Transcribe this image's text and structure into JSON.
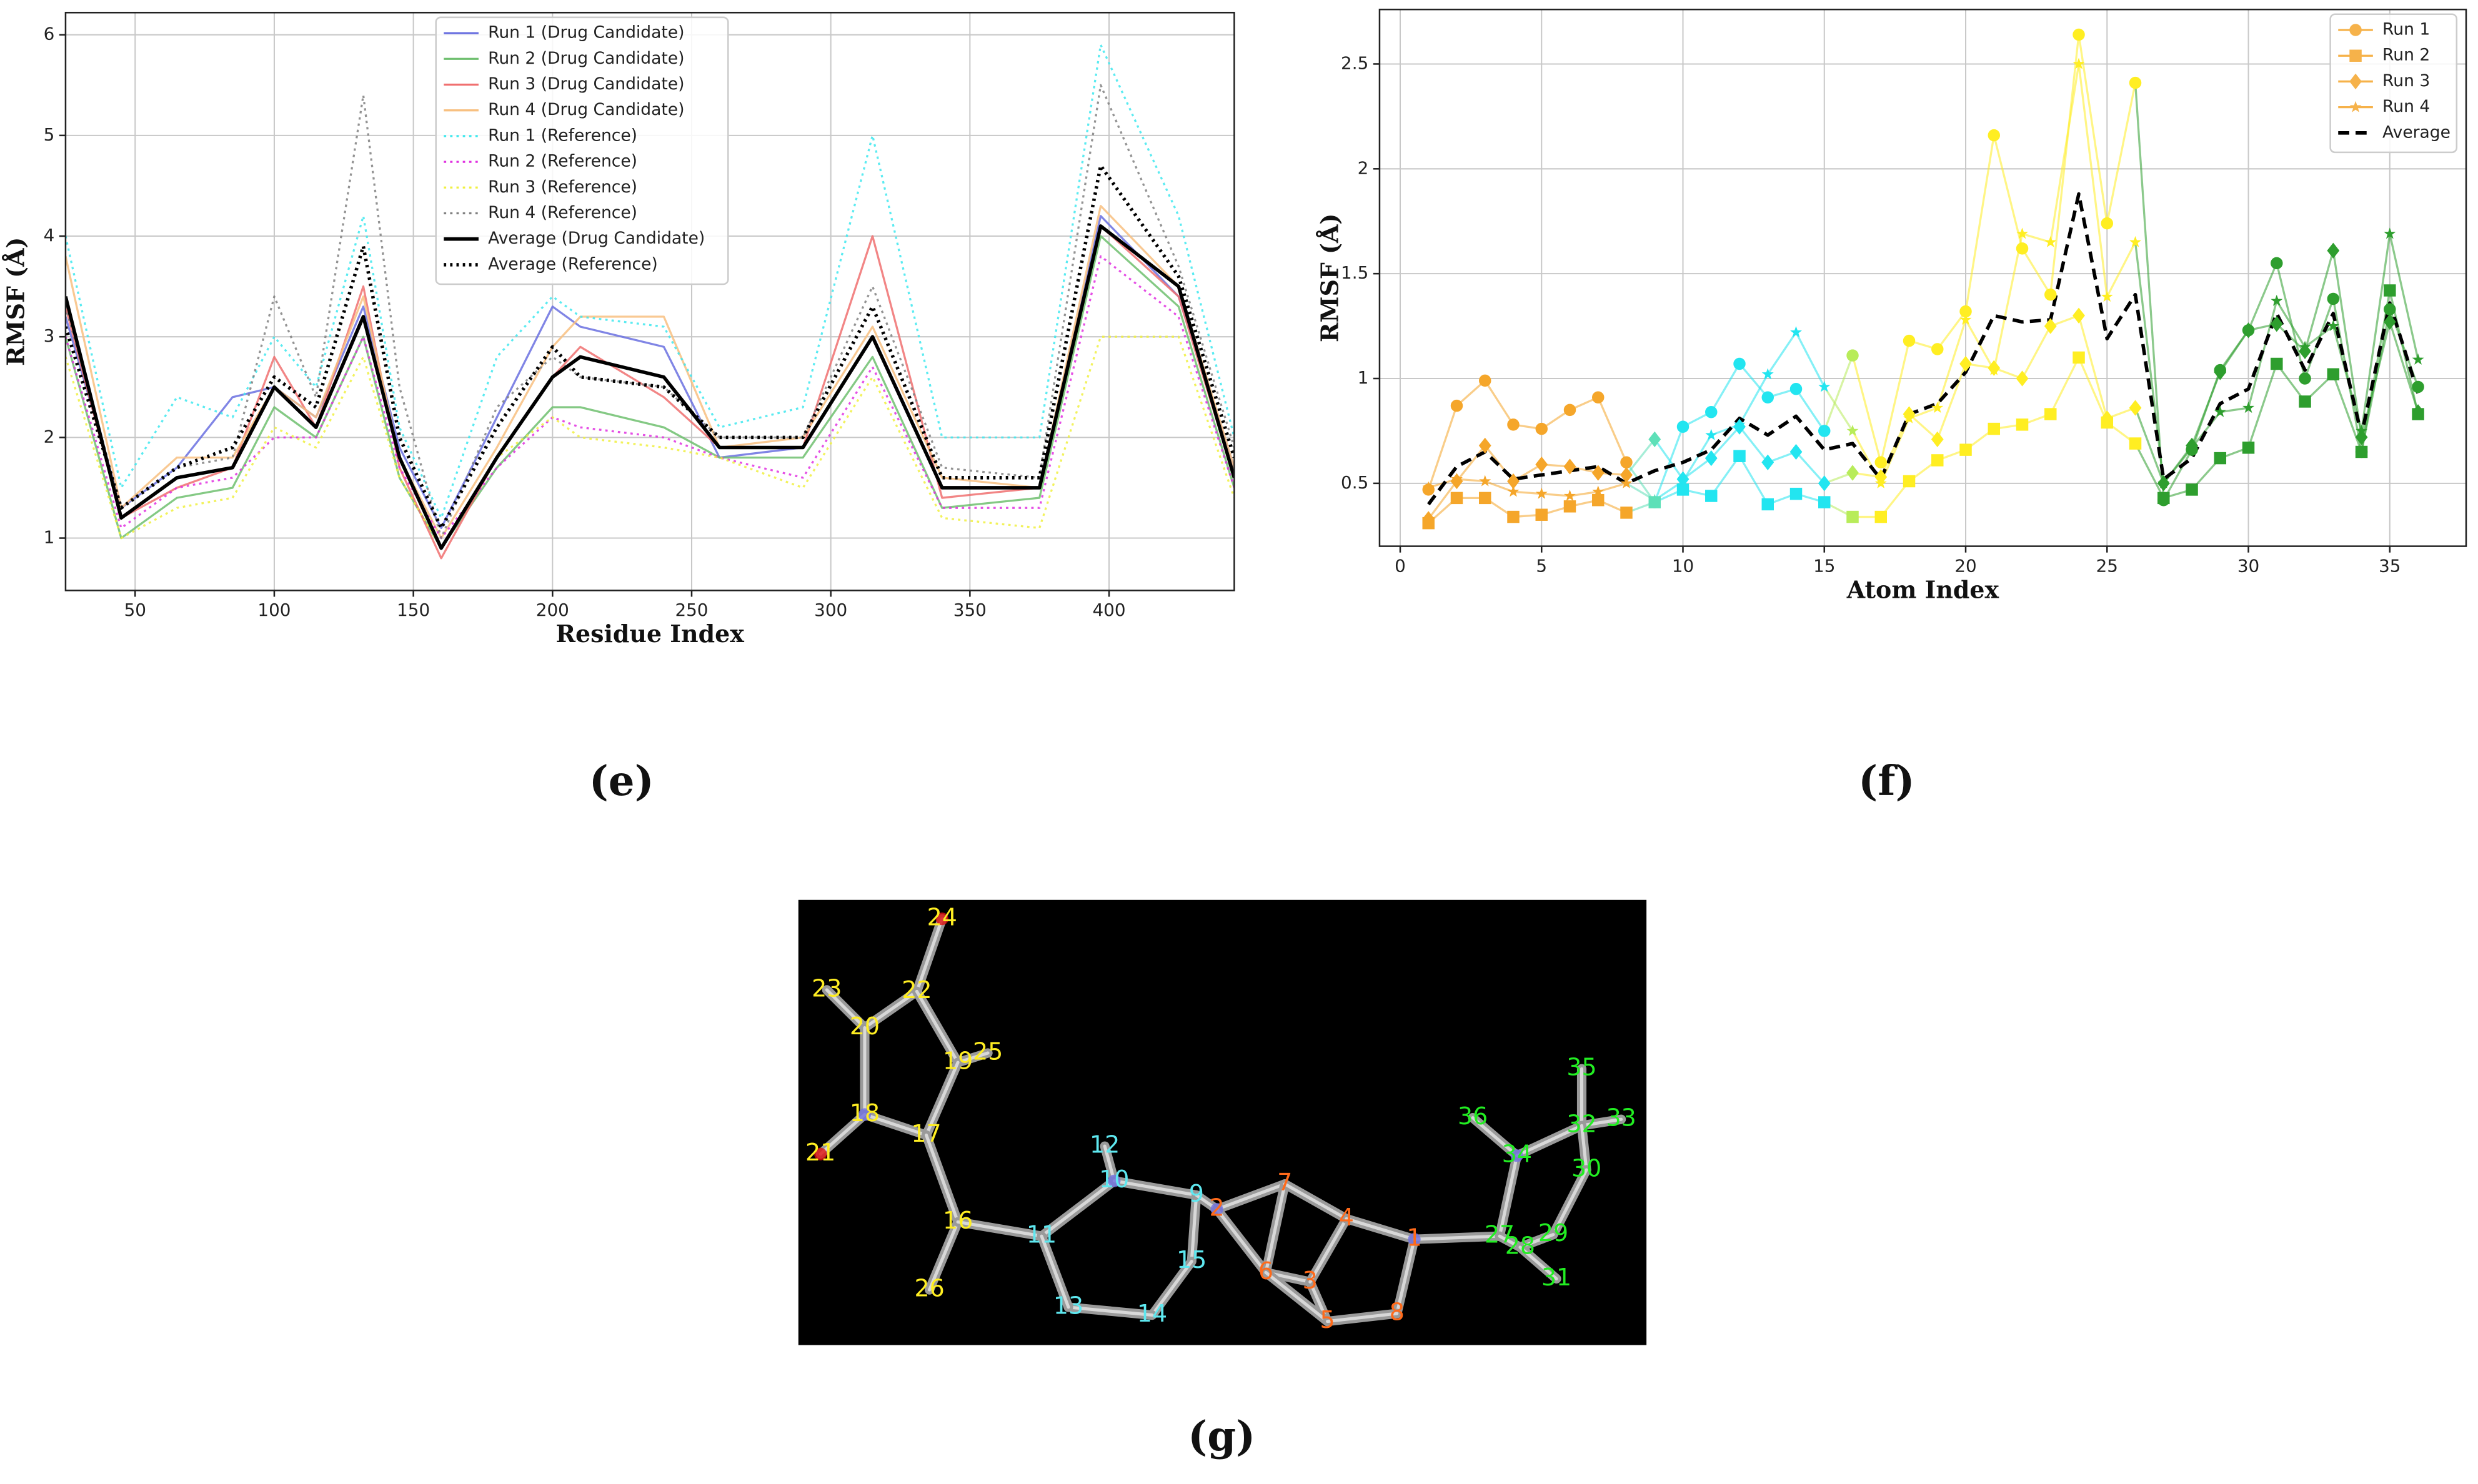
{
  "chart_data": [
    {
      "type": "line",
      "xlabel": "Residue Index",
      "ylabel": "RMSF (Å)",
      "x": [
        25,
        45,
        65,
        85,
        100,
        115,
        132,
        145,
        160,
        180,
        200,
        210,
        240,
        260,
        290,
        315,
        340,
        375,
        397,
        425,
        445
      ],
      "xlim": [
        25,
        445
      ],
      "ylim": [
        0.48,
        6.22
      ],
      "xticks": [
        50,
        100,
        150,
        200,
        250,
        300,
        350,
        400
      ],
      "yticks": [
        1,
        2,
        3,
        4,
        5,
        6
      ],
      "grid": true,
      "legend": "upper center",
      "series": [
        {
          "name": "Run 1 (Drug Candidate)",
          "color": "#6a70e0",
          "dash": "solid",
          "values": [
            3.2,
            1.3,
            1.7,
            2.4,
            2.5,
            2.2,
            3.3,
            1.9,
            1.1,
            2.2,
            3.3,
            3.1,
            2.9,
            1.8,
            1.9,
            3.0,
            1.5,
            1.5,
            4.2,
            3.4,
            1.7
          ]
        },
        {
          "name": "Run 2 (Drug Candidate)",
          "color": "#6fbf6f",
          "dash": "solid",
          "values": [
            3.0,
            1.0,
            1.4,
            1.5,
            2.3,
            2.0,
            3.0,
            1.6,
            0.9,
            1.7,
            2.3,
            2.3,
            2.1,
            1.8,
            1.8,
            2.8,
            1.3,
            1.4,
            4.0,
            3.3,
            1.5
          ]
        },
        {
          "name": "Run 3 (Drug Candidate)",
          "color": "#f07070",
          "dash": "solid",
          "values": [
            3.3,
            1.2,
            1.5,
            1.7,
            2.8,
            2.1,
            3.5,
            1.7,
            0.8,
            1.8,
            2.6,
            2.9,
            2.4,
            1.9,
            1.9,
            4.0,
            1.4,
            1.5,
            4.1,
            3.4,
            1.6
          ]
        },
        {
          "name": "Run 4 (Drug Candidate)",
          "color": "#f8c080",
          "dash": "solid",
          "values": [
            3.8,
            1.3,
            1.8,
            1.8,
            2.5,
            2.2,
            3.4,
            1.8,
            1.0,
            1.9,
            2.9,
            3.2,
            3.2,
            1.9,
            2.0,
            3.1,
            1.6,
            1.5,
            4.3,
            3.5,
            1.7
          ]
        },
        {
          "name": "Run 1 (Reference)",
          "color": "#3ee8ee",
          "dash": "dotted",
          "values": [
            4.0,
            1.5,
            2.4,
            2.2,
            3.0,
            2.5,
            4.2,
            2.1,
            1.2,
            2.8,
            3.4,
            3.2,
            3.1,
            2.1,
            2.3,
            5.0,
            2.0,
            2.0,
            5.9,
            4.2,
            2.0
          ]
        },
        {
          "name": "Run 2 (Reference)",
          "color": "#e030e0",
          "dash": "dotted",
          "values": [
            3.0,
            1.1,
            1.5,
            1.6,
            2.0,
            2.0,
            3.0,
            1.7,
            1.0,
            1.7,
            2.2,
            2.1,
            2.0,
            1.8,
            1.6,
            2.7,
            1.3,
            1.3,
            3.8,
            3.2,
            1.5
          ]
        },
        {
          "name": "Run 3 (Reference)",
          "color": "#f0f040",
          "dash": "dotted",
          "values": [
            2.8,
            1.0,
            1.3,
            1.4,
            2.1,
            1.9,
            2.8,
            1.6,
            0.9,
            1.8,
            2.2,
            2.0,
            1.9,
            1.8,
            1.5,
            2.6,
            1.2,
            1.1,
            3.0,
            3.0,
            1.4
          ]
        },
        {
          "name": "Run 4 (Reference)",
          "color": "#808080",
          "dash": "dotted",
          "values": [
            3.3,
            1.3,
            1.7,
            1.8,
            3.4,
            2.4,
            5.4,
            2.5,
            1.0,
            2.3,
            2.8,
            2.6,
            2.5,
            2.0,
            2.0,
            3.5,
            1.7,
            1.6,
            5.5,
            3.7,
            1.9
          ]
        },
        {
          "name": "Average (Drug Candidate)",
          "color": "#000000",
          "dash": "solid",
          "width": 2.2,
          "values": [
            3.4,
            1.2,
            1.6,
            1.7,
            2.5,
            2.1,
            3.2,
            1.8,
            0.9,
            1.8,
            2.6,
            2.8,
            2.6,
            1.9,
            1.9,
            3.0,
            1.5,
            1.5,
            4.1,
            3.5,
            1.6
          ]
        },
        {
          "name": "Average (Reference)",
          "color": "#000000",
          "dash": "dotted",
          "width": 2.2,
          "values": [
            3.1,
            1.3,
            1.7,
            1.9,
            2.6,
            2.3,
            3.9,
            2.0,
            1.1,
            2.1,
            2.9,
            2.6,
            2.5,
            2.0,
            2.0,
            3.3,
            1.6,
            1.6,
            4.7,
            3.6,
            1.8
          ]
        }
      ]
    },
    {
      "type": "line",
      "xlabel": "Atom Index",
      "ylabel": "RMSF (Å)",
      "x": [
        1,
        2,
        3,
        4,
        5,
        6,
        7,
        8,
        9,
        10,
        11,
        12,
        13,
        14,
        15,
        16,
        17,
        18,
        19,
        20,
        21,
        22,
        23,
        24,
        25,
        26,
        27,
        28,
        29,
        30,
        31,
        32,
        33,
        34,
        35,
        36
      ],
      "xlim": [
        -0.73,
        37.7
      ],
      "ylim": [
        0.2,
        2.76
      ],
      "xticks": [
        0,
        5,
        10,
        15,
        20,
        25,
        30,
        35
      ],
      "yticks": [
        0.5,
        1.0,
        1.5,
        2.0,
        2.5
      ],
      "grid": true,
      "legend": "upper right",
      "point_colors": [
        "#f5a62a",
        "#f5a62a",
        "#f5a62a",
        "#f5a62a",
        "#f5a62a",
        "#f5a62a",
        "#f5a62a",
        "#f5a62a",
        "#5ee0b8",
        "#22e5f0",
        "#22e5f0",
        "#22e5f0",
        "#22e5f0",
        "#22e5f0",
        "#22e5f0",
        "#b8ec5a",
        "#ffee22",
        "#ffee22",
        "#ffee22",
        "#ffee22",
        "#ffee22",
        "#ffee22",
        "#ffee22",
        "#ffee22",
        "#ffee22",
        "#ffee22",
        "#2e9e2e",
        "#2e9e2e",
        "#2e9e2e",
        "#2e9e2e",
        "#2e9e2e",
        "#2e9e2e",
        "#2e9e2e",
        "#2e9e2e",
        "#2e9e2e",
        "#2e9e2e"
      ],
      "series": [
        {
          "name": "Run 1",
          "color": "#f6b24a",
          "marker": "circle",
          "dash": "solid",
          "values": [
            0.47,
            0.87,
            0.99,
            0.78,
            0.76,
            0.85,
            0.91,
            0.6,
            0.41,
            0.77,
            0.84,
            1.07,
            0.91,
            0.95,
            0.75,
            1.11,
            0.6,
            1.18,
            1.14,
            1.32,
            2.16,
            1.62,
            1.4,
            2.64,
            1.74,
            2.41,
            0.42,
            0.66,
            1.04,
            1.23,
            1.55,
            1.0,
            1.38,
            0.65,
            1.33,
            0.96
          ]
        },
        {
          "name": "Run 2",
          "color": "#f6b24a",
          "marker": "square",
          "dash": "solid",
          "values": [
            0.31,
            0.43,
            0.43,
            0.34,
            0.35,
            0.39,
            0.42,
            0.36,
            0.41,
            0.47,
            0.44,
            0.63,
            0.4,
            0.45,
            0.41,
            0.34,
            0.34,
            0.51,
            0.61,
            0.66,
            0.76,
            0.78,
            0.83,
            1.1,
            0.79,
            0.69,
            0.43,
            0.47,
            0.62,
            0.67,
            1.07,
            0.89,
            1.02,
            0.65,
            1.42,
            0.83
          ]
        },
        {
          "name": "Run 3",
          "color": "#f6b24a",
          "marker": "diamond",
          "dash": "solid",
          "values": [
            0.33,
            0.51,
            0.68,
            0.51,
            0.59,
            0.58,
            0.55,
            0.54,
            0.71,
            0.52,
            0.62,
            0.77,
            0.6,
            0.65,
            0.5,
            0.55,
            0.53,
            0.83,
            0.71,
            1.07,
            1.05,
            1.0,
            1.25,
            1.3,
            0.81,
            0.86,
            0.5,
            0.68,
            1.03,
            1.23,
            1.26,
            1.13,
            1.61,
            0.72,
            1.27,
            0.84
          ]
        },
        {
          "name": "Run 4",
          "color": "#f6b24a",
          "marker": "star",
          "dash": "solid",
          "values": [
            0.48,
            0.52,
            0.51,
            0.46,
            0.45,
            0.44,
            0.46,
            0.5,
            0.42,
            0.51,
            0.73,
            0.78,
            1.02,
            1.22,
            0.96,
            0.75,
            0.5,
            0.81,
            0.86,
            1.28,
            1.04,
            1.69,
            1.65,
            2.5,
            1.39,
            1.65,
            0.5,
            0.67,
            0.84,
            0.86,
            1.37,
            1.15,
            1.25,
            0.75,
            1.69,
            1.09
          ]
        },
        {
          "name": "Average",
          "color": "#000000",
          "dash": "dashed",
          "width": 2.2,
          "values": [
            0.4,
            0.58,
            0.65,
            0.52,
            0.54,
            0.56,
            0.58,
            0.5,
            0.56,
            0.6,
            0.66,
            0.81,
            0.73,
            0.82,
            0.66,
            0.69,
            0.52,
            0.83,
            0.88,
            1.03,
            1.3,
            1.27,
            1.28,
            1.88,
            1.19,
            1.4,
            0.52,
            0.62,
            0.88,
            0.95,
            1.31,
            1.04,
            1.31,
            0.73,
            1.36,
            0.93
          ]
        }
      ]
    }
  ],
  "panel_labels": [
    "(e)",
    "(f)",
    "(g)"
  ],
  "molecule": {
    "atoms": [
      {
        "label": "1",
        "color": "#ff6a1a"
      },
      {
        "label": "2",
        "color": "#ff6a1a"
      },
      {
        "label": "3",
        "color": "#ff6a1a"
      },
      {
        "label": "4",
        "color": "#ff6a1a"
      },
      {
        "label": "5",
        "color": "#ff6a1a"
      },
      {
        "label": "6",
        "color": "#ff6a1a"
      },
      {
        "label": "7",
        "color": "#ff6a1a"
      },
      {
        "label": "8",
        "color": "#ff6a1a"
      },
      {
        "label": "9",
        "color": "#5ee8f0"
      },
      {
        "label": "10",
        "color": "#5ee8f0"
      },
      {
        "label": "11",
        "color": "#5ee8f0"
      },
      {
        "label": "12",
        "color": "#5ee8f0"
      },
      {
        "label": "13",
        "color": "#5ee8f0"
      },
      {
        "label": "14",
        "color": "#5ee8f0"
      },
      {
        "label": "15",
        "color": "#5ee8f0"
      },
      {
        "label": "16",
        "color": "#ffee22"
      },
      {
        "label": "17",
        "color": "#ffee22"
      },
      {
        "label": "18",
        "color": "#ffee22"
      },
      {
        "label": "19",
        "color": "#ffee22"
      },
      {
        "label": "20",
        "color": "#ffee22"
      },
      {
        "label": "21",
        "color": "#ffee22"
      },
      {
        "label": "22",
        "color": "#ffee22"
      },
      {
        "label": "23",
        "color": "#ffee22"
      },
      {
        "label": "24",
        "color": "#ffee22"
      },
      {
        "label": "25",
        "color": "#ffee22"
      },
      {
        "label": "26",
        "color": "#ffee22"
      },
      {
        "label": "27",
        "color": "#22ee22"
      },
      {
        "label": "28",
        "color": "#22ee22"
      },
      {
        "label": "29",
        "color": "#22ee22"
      },
      {
        "label": "30",
        "color": "#22ee22"
      },
      {
        "label": "31",
        "color": "#22ee22"
      },
      {
        "label": "32",
        "color": "#22ee22"
      },
      {
        "label": "33",
        "color": "#22ee22"
      },
      {
        "label": "34",
        "color": "#22ee22"
      },
      {
        "label": "35",
        "color": "#22ee22"
      },
      {
        "label": "36",
        "color": "#22ee22"
      }
    ]
  }
}
